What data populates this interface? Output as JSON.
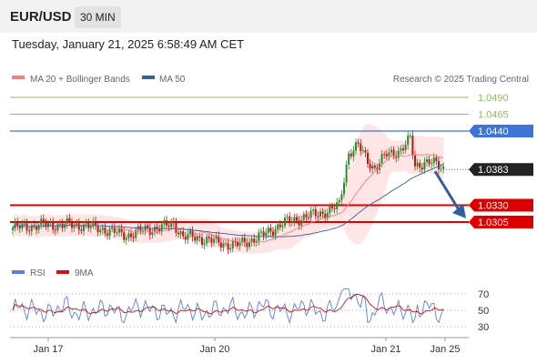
{
  "header": {
    "symbol": "EUR/USD",
    "timeframe": "30 MIN"
  },
  "timestamp": "Tuesday, January 21, 2025 6:58:49 AM CET",
  "legend": {
    "ma20_label": "MA 20 + Bollinger Bands",
    "ma50_label": "MA 50",
    "credit": "Research © 2025 Trading Central",
    "rsi_label": "RSI",
    "rsi_ma_label": "9MA"
  },
  "colors": {
    "up": "#2a8a2a",
    "down": "#cc1111",
    "ma20": "#f08080",
    "band": "#ffe0e0",
    "ma50": "#3a5f9e",
    "resistance": "#8fbf5f",
    "blue_level": "#3e74d8",
    "support": "#dd0000",
    "current": "#222222",
    "arrow": "#2f5f9e",
    "rsi": "#5a7fe0",
    "rsi_ma": "#d11111"
  },
  "chart_data": {
    "type": "candlestick",
    "price_levels": [
      {
        "label": "1.0490",
        "value": 1.049,
        "kind": "resistance"
      },
      {
        "label": "1.0465",
        "value": 1.0465,
        "kind": "resistance"
      },
      {
        "label": "1.0440",
        "value": 1.044,
        "kind": "pivot"
      },
      {
        "label": "1.0383",
        "value": 1.0383,
        "kind": "current"
      },
      {
        "label": "1.0330",
        "value": 1.033,
        "kind": "support"
      },
      {
        "label": "1.0305",
        "value": 1.0305,
        "kind": "support"
      }
    ],
    "forecast": {
      "from": 1.0383,
      "to": 1.0305,
      "direction": "down"
    },
    "x_ticks": [
      "Jan 17",
      "Jan 20",
      "Jan 21",
      "Jan 25"
    ],
    "rsi": {
      "ticks": [
        70,
        50,
        30
      ],
      "range": [
        0,
        100
      ],
      "series": [
        "RSI",
        "9MA"
      ]
    }
  }
}
